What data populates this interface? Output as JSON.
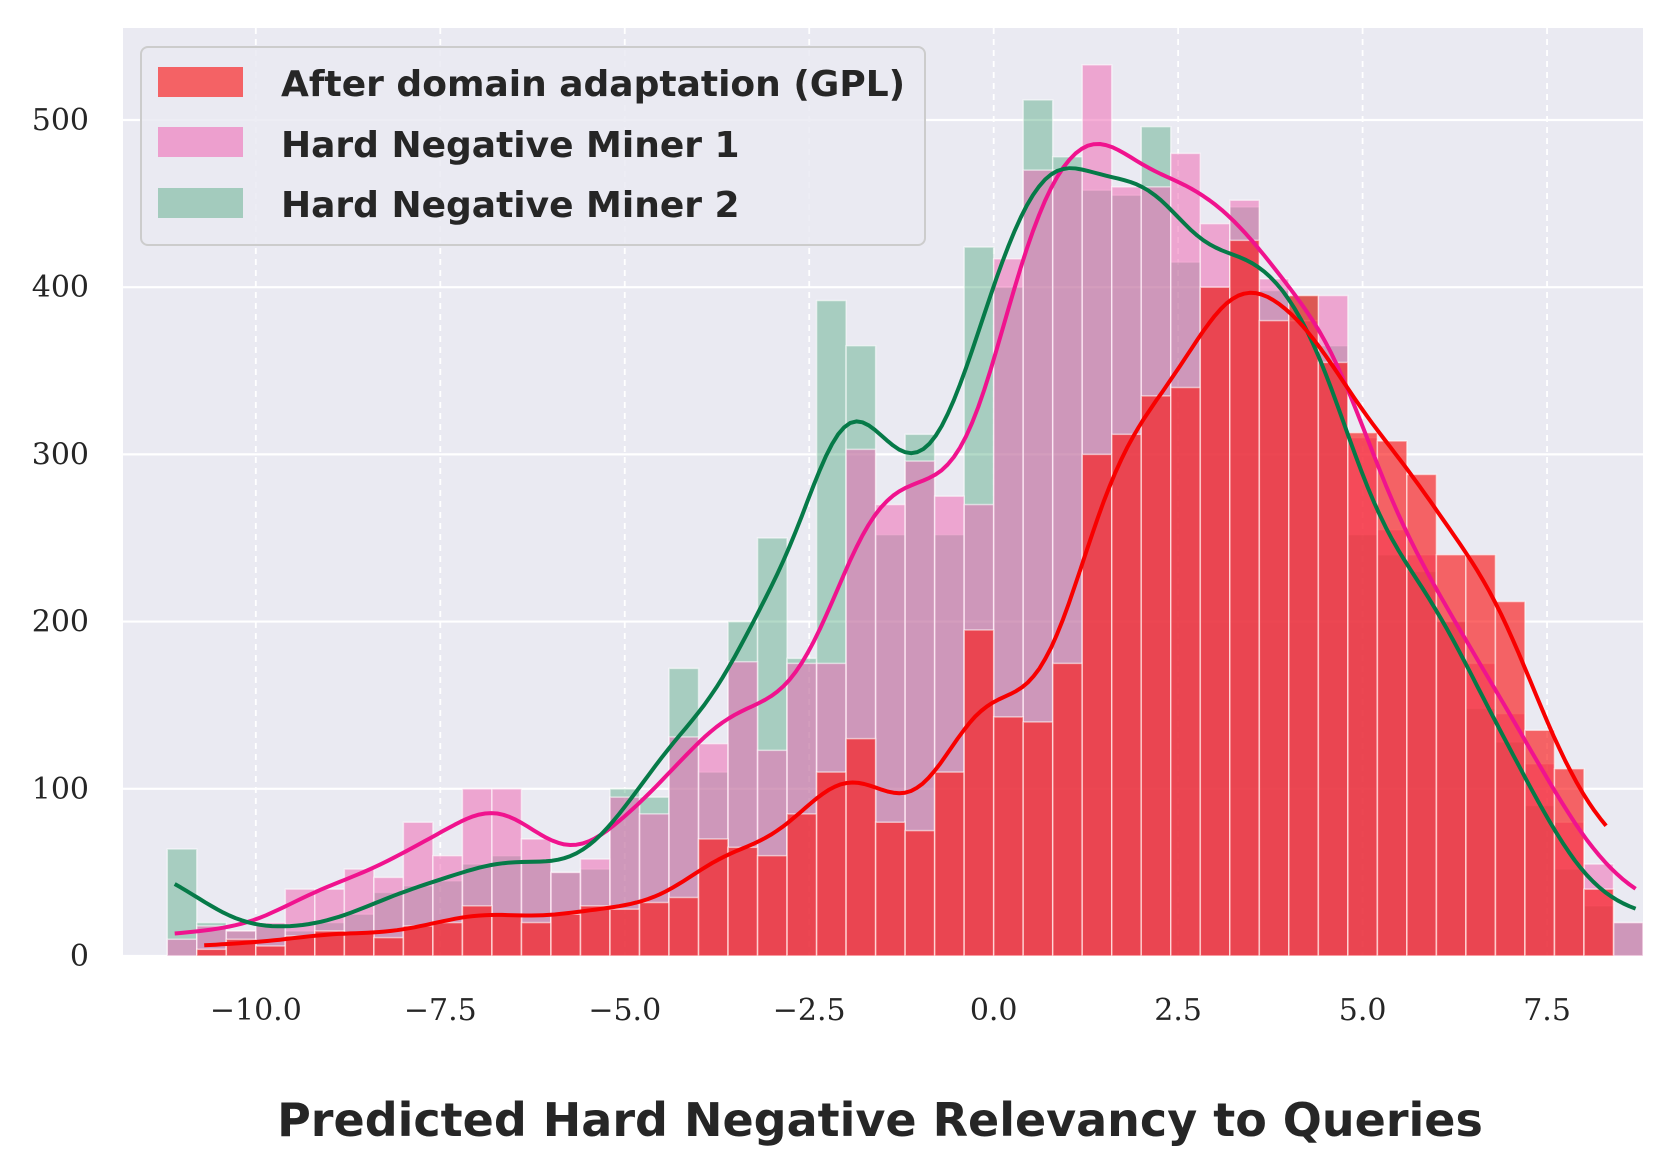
{
  "chart_data": {
    "type": "histogram",
    "title": "",
    "xlabel": "Predicted Hard Negative Relevancy to Queries",
    "ylabel": "",
    "xlim": [
      -11.8,
      8.8
    ],
    "ylim": [
      0,
      555
    ],
    "bin_width": 0.4,
    "x_ticks": [
      -10.0,
      -7.5,
      -5.0,
      -2.5,
      0.0,
      2.5,
      5.0,
      7.5
    ],
    "x_tick_labels": [
      "−10.0",
      "−7.5",
      "−5.0",
      "−2.5",
      "0.0",
      "2.5",
      "5.0",
      "7.5"
    ],
    "y_ticks": [
      0,
      100,
      200,
      300,
      400,
      500
    ],
    "y_tick_labels": [
      "0",
      "100",
      "200",
      "300",
      "400",
      "500"
    ],
    "grid": true,
    "legend_position": "top-left",
    "series": [
      {
        "name": "Hard Negative Miner 2",
        "color": "#3a9e6e",
        "kde_color": "#067a48",
        "bin_start": -11.2,
        "counts": [
          64,
          20,
          15,
          18,
          15,
          20,
          25,
          38,
          42,
          45,
          55,
          60,
          58,
          50,
          52,
          100,
          95,
          172,
          110,
          200,
          250,
          178,
          392,
          365,
          252,
          312,
          252,
          424,
          400,
          512,
          478,
          458,
          455,
          496,
          415,
          400,
          448,
          398,
          395,
          365,
          252,
          240,
          230,
          200,
          148,
          128,
          90,
          52,
          30,
          20
        ]
      },
      {
        "name": "Hard Negative Miner 1",
        "color": "#ee6cb5",
        "kde_color": "#f0138e",
        "bin_start": -11.2,
        "counts": [
          10,
          18,
          15,
          20,
          40,
          40,
          52,
          47,
          80,
          60,
          100,
          100,
          70,
          50,
          58,
          95,
          85,
          131,
          127,
          176,
          123,
          175,
          175,
          303,
          270,
          296,
          275,
          270,
          417,
          470,
          470,
          533,
          460,
          460,
          480,
          438,
          452,
          405,
          380,
          395,
          310,
          255,
          240,
          200,
          175,
          145,
          115,
          80,
          55,
          20
        ]
      },
      {
        "name": "After domain adaptation (GPL)",
        "color": "#f91818",
        "kde_color": "#f80000",
        "bin_start": -10.8,
        "counts": [
          4,
          10,
          6,
          12,
          15,
          14,
          11,
          18,
          20,
          30,
          25,
          20,
          25,
          30,
          28,
          32,
          35,
          70,
          65,
          60,
          85,
          110,
          130,
          80,
          75,
          110,
          195,
          143,
          140,
          175,
          300,
          312,
          335,
          340,
          400,
          428,
          380,
          395,
          355,
          313,
          308,
          288,
          240,
          240,
          212,
          135,
          112,
          40
        ]
      }
    ]
  },
  "legend": {
    "items": [
      {
        "label": "After domain adaptation (GPL)",
        "color": "#f91818"
      },
      {
        "label": "Hard Negative Miner 1",
        "color": "#ee6cb5"
      },
      {
        "label": "Hard Negative Miner 2",
        "color": "#3a9e6e"
      }
    ]
  }
}
